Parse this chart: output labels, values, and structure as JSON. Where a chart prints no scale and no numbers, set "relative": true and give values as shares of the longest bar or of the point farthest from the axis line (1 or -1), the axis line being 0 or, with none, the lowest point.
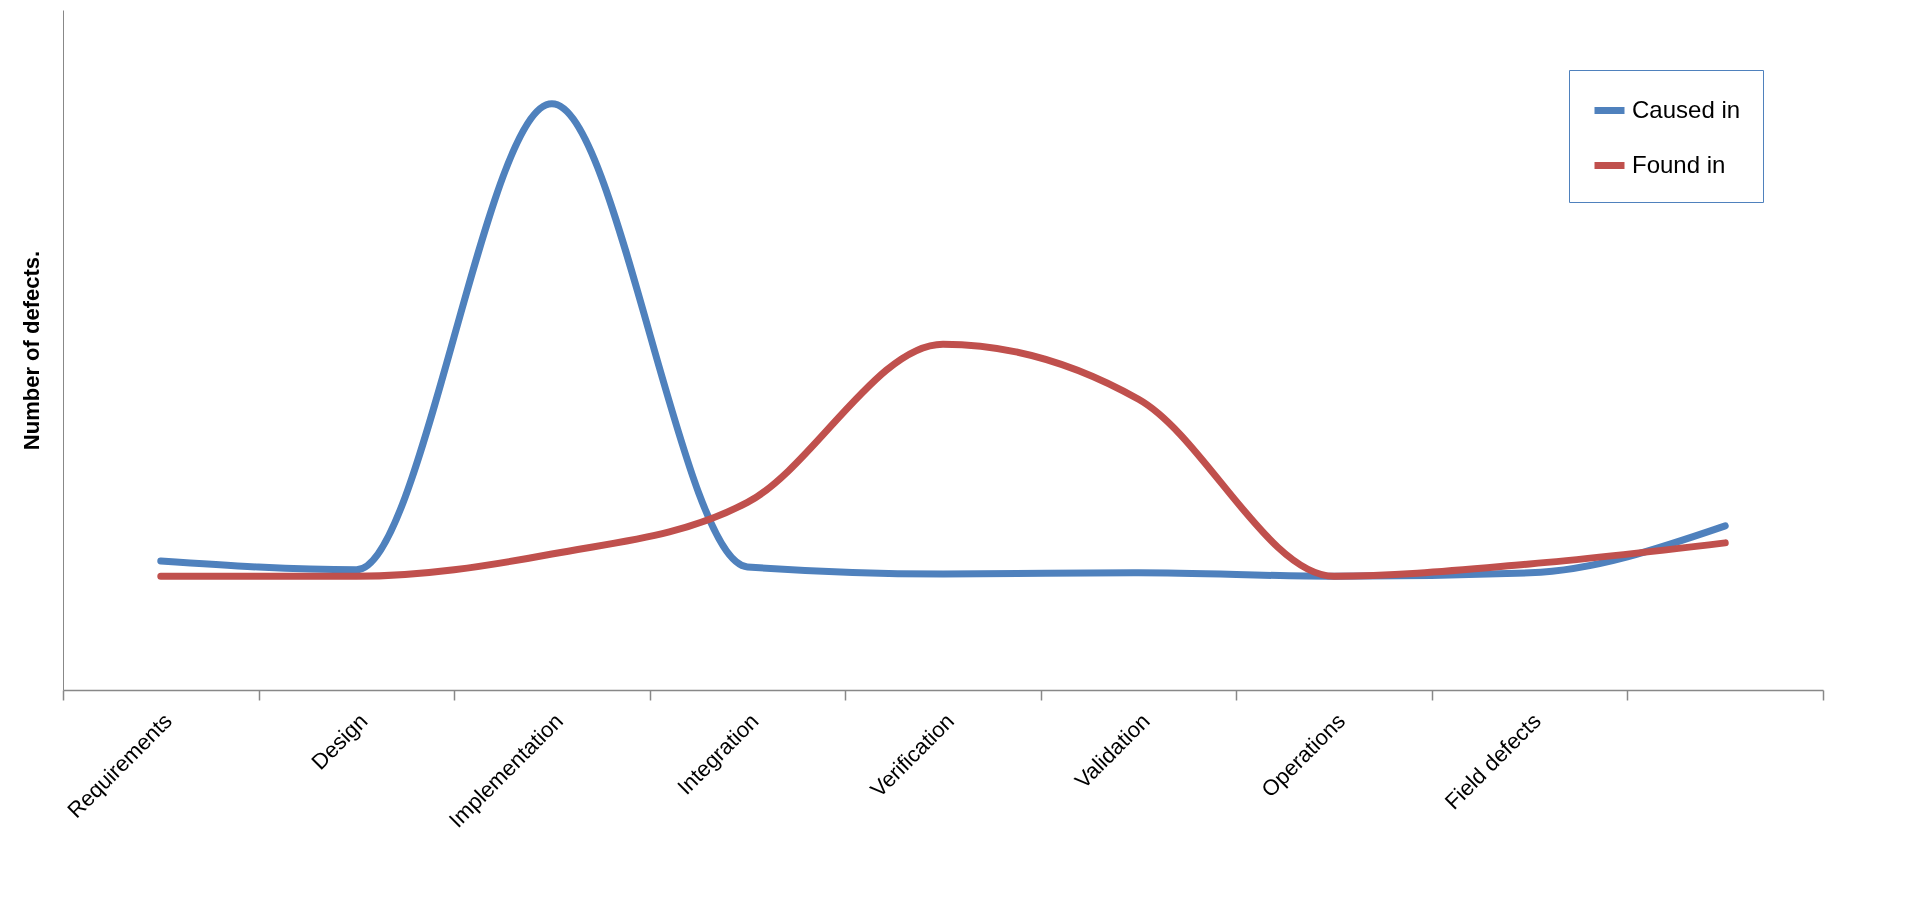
{
  "chart_data": {
    "type": "line",
    "relative": true,
    "ylabel": "Number of defects.",
    "categories": [
      "Requirements",
      "Design",
      "Implementation",
      "Integration",
      "Verification",
      "Validation",
      "Operations",
      "Field defects",
      null
    ],
    "series": [
      {
        "name": "Caused in",
        "color": "#4f81bd",
        "values": [
          0.22,
          0.205,
          1,
          0.21,
          0.198,
          0.2,
          0.194,
          0.2,
          0.28
        ]
      },
      {
        "name": "Found in",
        "color": "#c0504d",
        "values": [
          0.194,
          0.194,
          0.232,
          0.32,
          0.59,
          0.496,
          0.194,
          0.215,
          0.251
        ]
      }
    ],
    "legend": "top right",
    "line_style": "solid",
    "marker": "none"
  }
}
